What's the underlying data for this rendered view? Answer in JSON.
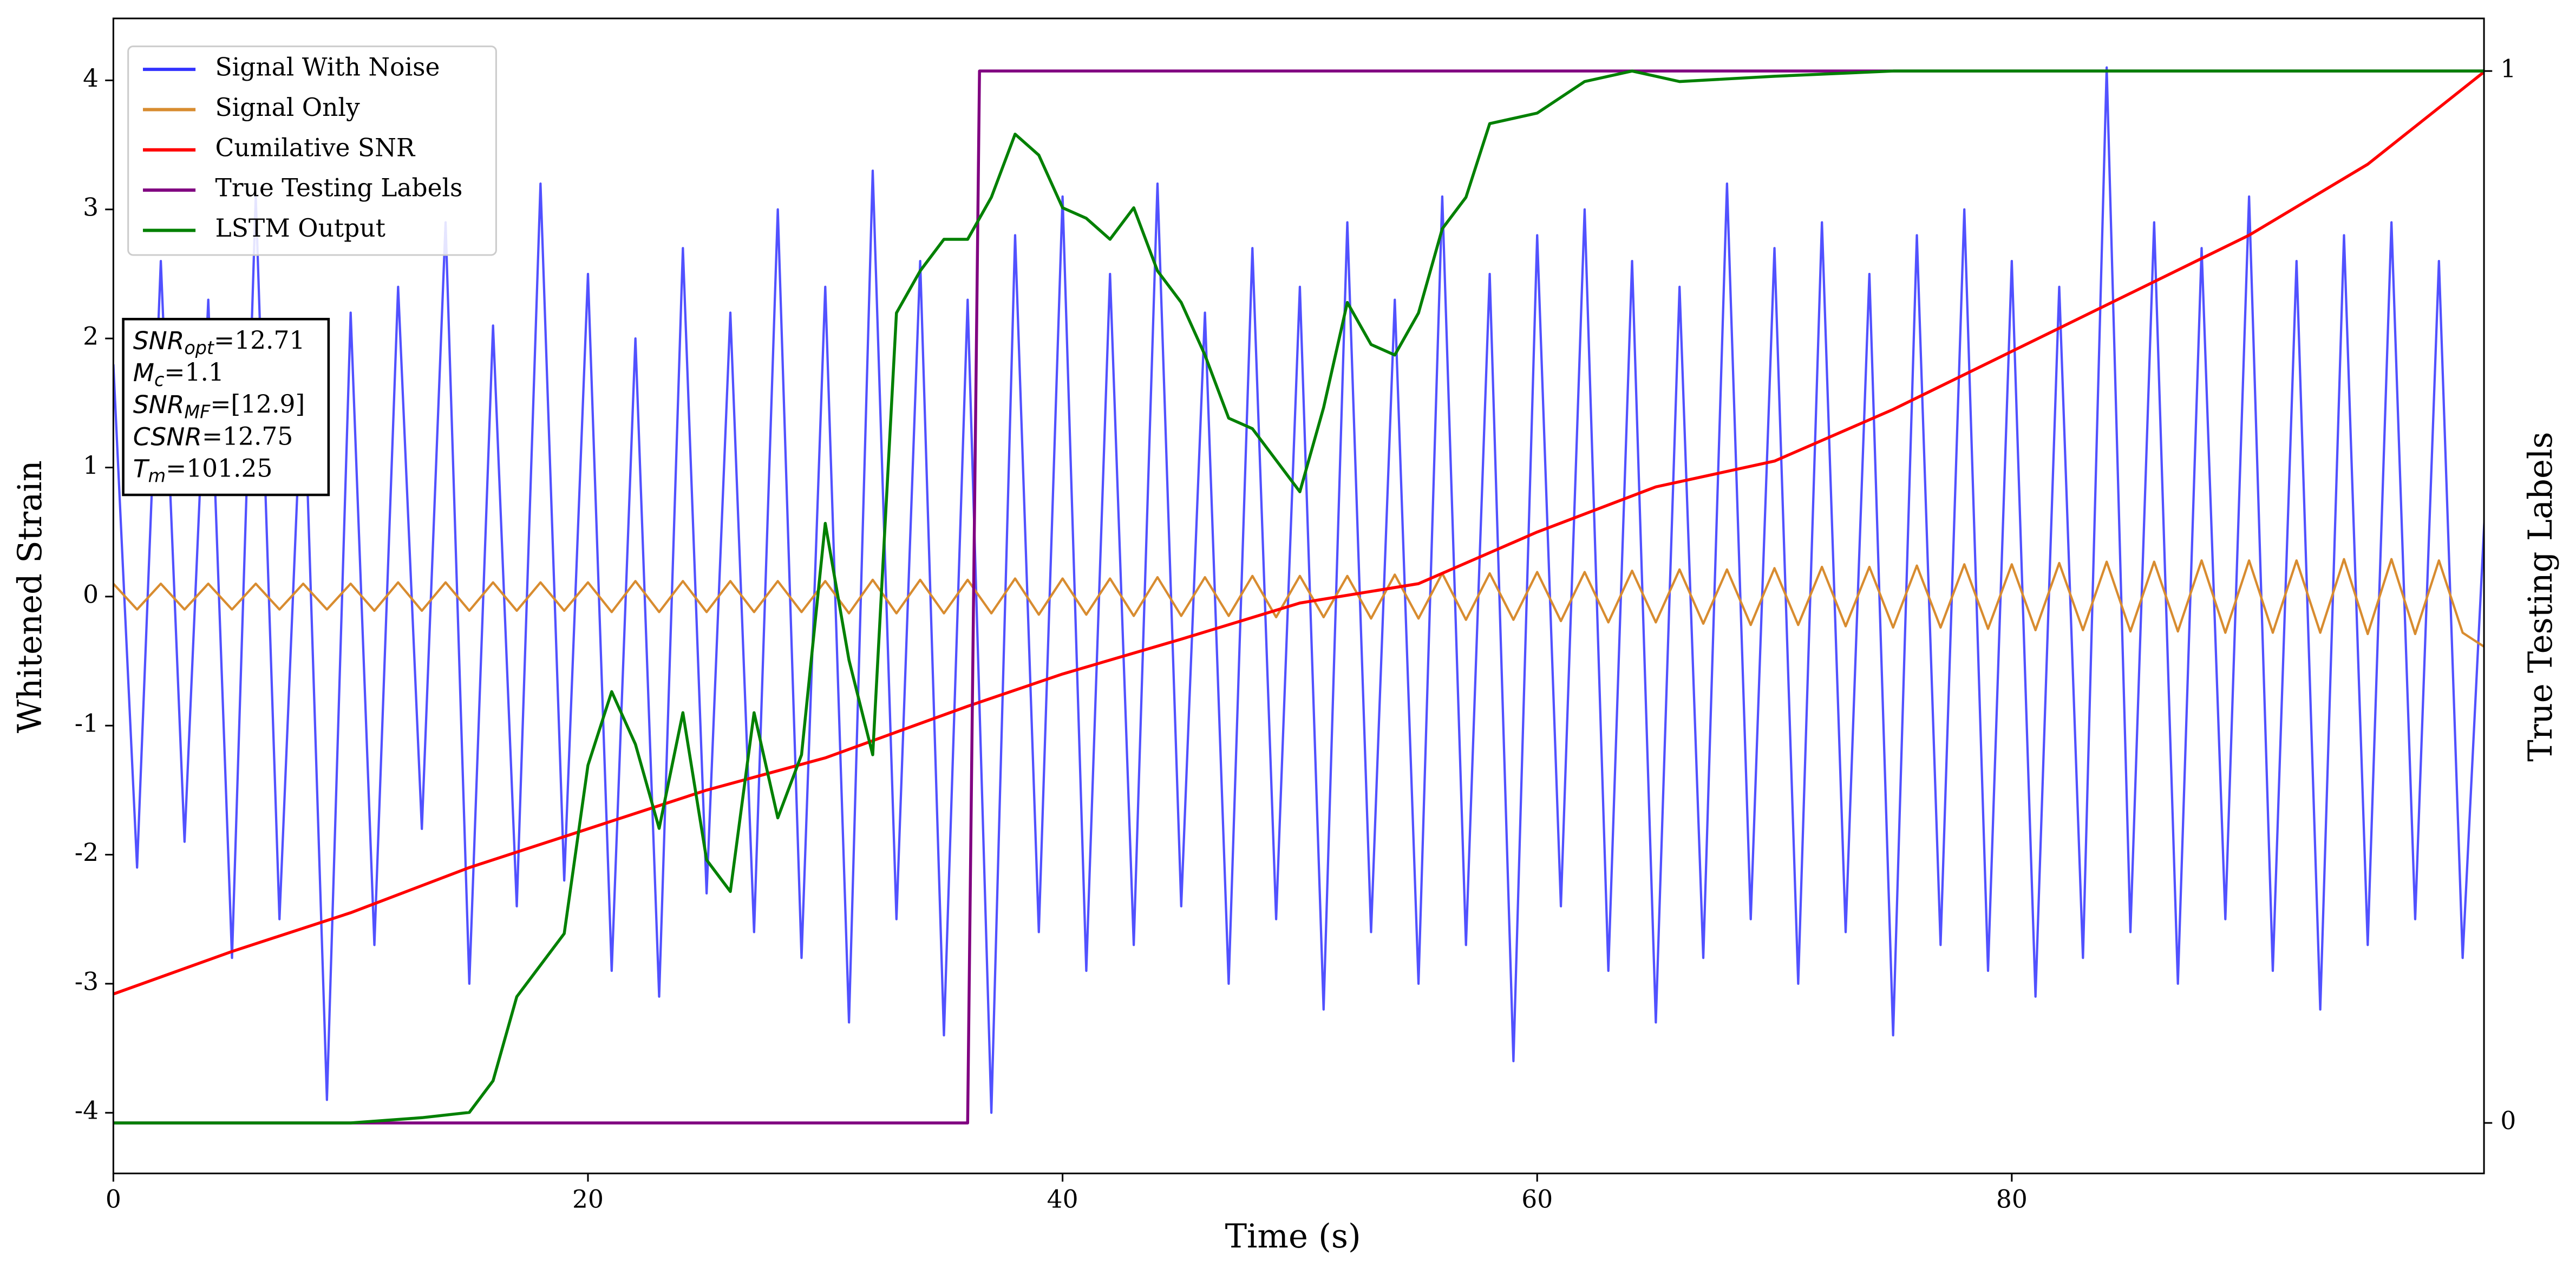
{
  "chart_data": {
    "type": "line",
    "xlabel": "Time (s)",
    "ylabel": "Whitened Strain",
    "y2label": "True Testing Labels",
    "xlim": [
      0,
      99.9
    ],
    "xticks": [
      0,
      20,
      40,
      60,
      80
    ],
    "ylim": [
      -4.47,
      4.48
    ],
    "yticks": [
      -4,
      -3,
      -2,
      -1,
      0,
      1,
      2,
      3,
      4
    ],
    "y2lim": [
      -0.048,
      1.05
    ],
    "y2ticks": [
      0,
      1
    ],
    "legend": "upper left",
    "grid": false,
    "x": [
      0,
      1,
      2,
      3,
      4,
      5,
      6,
      7,
      8,
      9,
      10,
      11,
      12,
      13,
      14,
      15,
      16,
      17,
      18,
      19,
      20,
      21,
      22,
      23,
      24,
      25,
      26,
      27,
      28,
      29,
      30,
      31,
      32,
      33,
      34,
      35,
      36,
      37,
      38,
      39,
      40,
      41,
      42,
      43,
      44,
      45,
      46,
      47,
      48,
      49,
      50,
      51,
      52,
      53,
      54,
      55,
      56,
      57,
      58,
      59,
      60,
      61,
      62,
      63,
      64,
      65,
      66,
      67,
      68,
      69,
      70,
      71,
      72,
      73,
      74,
      75,
      76,
      77,
      78,
      79,
      80,
      81,
      82,
      83,
      84,
      85,
      86,
      87,
      88,
      89,
      90,
      91,
      92,
      93,
      94,
      95,
      96,
      97,
      98,
      99,
      100
    ],
    "series": [
      {
        "name": "Signal With Noise",
        "color": "#3333ff",
        "values": [
          1.8,
          -2.1,
          2.6,
          -1.9,
          2.3,
          -2.8,
          3.1,
          -2.5,
          1.9,
          -3.9,
          2.2,
          -2.7,
          2.4,
          -1.8,
          2.9,
          -3.0,
          2.1,
          -2.4,
          3.2,
          -2.2,
          2.5,
          -2.9,
          2.0,
          -3.1,
          2.7,
          -2.3,
          2.2,
          -2.6,
          3.0,
          -2.8,
          2.4,
          -3.3,
          3.3,
          -2.5,
          2.6,
          -3.4,
          2.3,
          -4.0,
          2.8,
          -2.6,
          3.1,
          -2.9,
          2.5,
          -2.7,
          3.2,
          -2.4,
          2.2,
          -3.0,
          2.7,
          -2.5,
          2.4,
          -3.2,
          2.9,
          -2.6,
          2.3,
          -3.0,
          3.1,
          -2.7,
          2.5,
          -3.6,
          2.8,
          -2.4,
          3.0,
          -2.9,
          2.6,
          -3.3,
          2.4,
          -2.8,
          3.2,
          -2.5,
          2.7,
          -3.0,
          2.9,
          -2.6,
          2.5,
          -3.4,
          2.8,
          -2.7,
          3.0,
          -2.9,
          2.6,
          -3.1,
          2.4,
          -2.8,
          4.1,
          -2.6,
          2.9,
          -3.0,
          2.7,
          -2.5,
          3.1,
          -2.9,
          2.6,
          -3.2,
          2.8,
          -2.7,
          2.9,
          -2.5,
          2.6,
          -2.8,
          0.9
        ]
      },
      {
        "name": "Signal Only",
        "color": "#d88c30",
        "values": [
          0.1,
          -0.1,
          0.1,
          -0.1,
          0.1,
          -0.1,
          0.1,
          -0.1,
          0.1,
          -0.1,
          0.1,
          -0.11,
          0.11,
          -0.11,
          0.11,
          -0.11,
          0.11,
          -0.11,
          0.11,
          -0.11,
          0.11,
          -0.12,
          0.12,
          -0.12,
          0.12,
          -0.12,
          0.12,
          -0.12,
          0.12,
          -0.12,
          0.12,
          -0.13,
          0.13,
          -0.13,
          0.13,
          -0.13,
          0.13,
          -0.13,
          0.14,
          -0.14,
          0.14,
          -0.14,
          0.14,
          -0.15,
          0.15,
          -0.15,
          0.15,
          -0.15,
          0.16,
          -0.16,
          0.16,
          -0.16,
          0.16,
          -0.17,
          0.17,
          -0.17,
          0.18,
          -0.18,
          0.18,
          -0.18,
          0.19,
          -0.19,
          0.19,
          -0.2,
          0.2,
          -0.2,
          0.21,
          -0.21,
          0.21,
          -0.22,
          0.22,
          -0.22,
          0.23,
          -0.23,
          0.23,
          -0.24,
          0.24,
          -0.24,
          0.25,
          -0.25,
          0.25,
          -0.26,
          0.26,
          -0.26,
          0.27,
          -0.27,
          0.27,
          -0.27,
          0.28,
          -0.28,
          0.28,
          -0.28,
          0.28,
          -0.28,
          0.29,
          -0.29,
          0.29,
          -0.29,
          0.28,
          -0.28,
          -0.4
        ]
      },
      {
        "name": "Cumilative SNR",
        "color": "#ff0000",
        "x": [
          0,
          5,
          10,
          15,
          20,
          25,
          30,
          36,
          40,
          45,
          50,
          55,
          60,
          65,
          70,
          75,
          80,
          85,
          90,
          95,
          100
        ],
        "values": [
          -3.08,
          -2.75,
          -2.45,
          -2.1,
          -1.8,
          -1.5,
          -1.25,
          -0.85,
          -0.6,
          -0.33,
          -0.05,
          0.1,
          0.5,
          0.85,
          1.05,
          1.45,
          1.9,
          2.35,
          2.8,
          3.35,
          4.08
        ]
      },
      {
        "name": "True Testing Labels",
        "color": "#800080",
        "axis": "y2",
        "x": [
          0,
          36,
          36.5,
          100
        ],
        "values": [
          0,
          0,
          1,
          1
        ]
      },
      {
        "name": "LSTM Output",
        "color": "#008000",
        "axis": "y2",
        "x": [
          0,
          10,
          13,
          15,
          16,
          17,
          18,
          19,
          20,
          21,
          22,
          23,
          24,
          25,
          26,
          27,
          28,
          29,
          30,
          31,
          32,
          33,
          34,
          35,
          36,
          37,
          38,
          39,
          40,
          41,
          42,
          43,
          44,
          45,
          46,
          47,
          48,
          49,
          50,
          51,
          52,
          53,
          54,
          55,
          56,
          57,
          58,
          60,
          62,
          64,
          66,
          70,
          75,
          80,
          100
        ],
        "values": [
          0,
          0,
          0.005,
          0.01,
          0.04,
          0.12,
          0.15,
          0.18,
          0.34,
          0.41,
          0.36,
          0.28,
          0.39,
          0.25,
          0.22,
          0.39,
          0.29,
          0.35,
          0.57,
          0.44,
          0.35,
          0.77,
          0.81,
          0.84,
          0.84,
          0.88,
          0.94,
          0.92,
          0.87,
          0.86,
          0.84,
          0.87,
          0.81,
          0.78,
          0.73,
          0.67,
          0.66,
          0.63,
          0.6,
          0.68,
          0.78,
          0.74,
          0.73,
          0.77,
          0.85,
          0.88,
          0.95,
          0.96,
          0.99,
          1.0,
          0.99,
          0.995,
          1.0,
          1.0,
          1.0
        ]
      }
    ],
    "annotation_lines": [
      {
        "main": "SNR",
        "sub": "opt",
        "rest": "=12.71"
      },
      {
        "main": "M",
        "sub": "c",
        "rest": "=1.1"
      },
      {
        "main": "SNR",
        "sub": "MF",
        "rest": "=[12.9]"
      },
      {
        "main": "CSNR",
        "rest": "=12.75"
      },
      {
        "main": "T",
        "sub": "m",
        "rest": "=101.25"
      }
    ]
  }
}
